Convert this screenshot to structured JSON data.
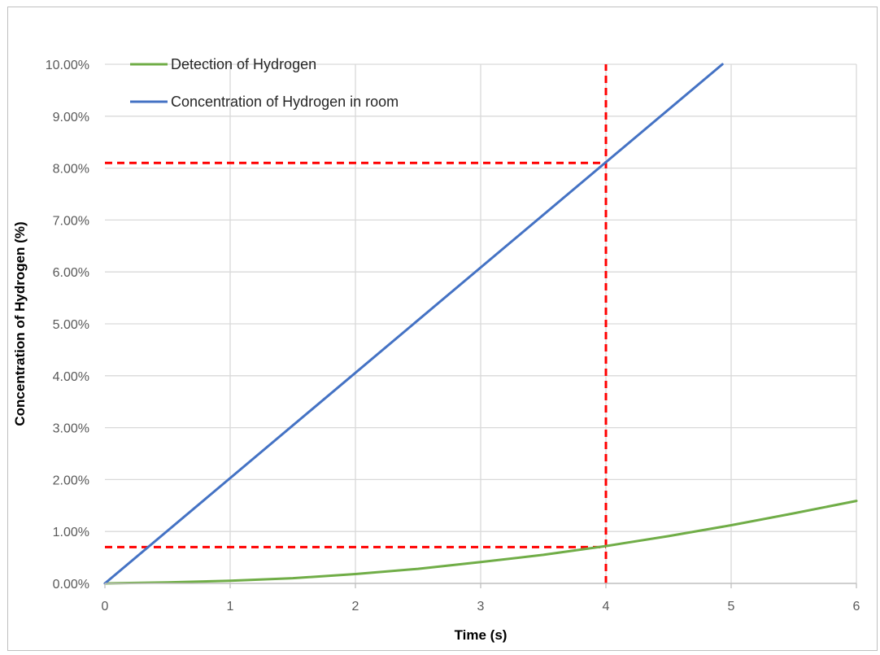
{
  "chart_data": {
    "type": "line",
    "xlabel": "Time (s)",
    "ylabel": "Concentration of Hydrogen (%)",
    "xlim": [
      0,
      6
    ],
    "ylim": [
      0,
      0.1
    ],
    "x_ticks": [
      0,
      1,
      2,
      3,
      4,
      5,
      6
    ],
    "x_tick_labels": [
      "0",
      "1",
      "2",
      "3",
      "4",
      "5",
      "6"
    ],
    "y_ticks": [
      0,
      0.01,
      0.02,
      0.03,
      0.04,
      0.05,
      0.06,
      0.07,
      0.08,
      0.09,
      0.1
    ],
    "y_tick_labels": [
      "0.00%",
      "1.00%",
      "2.00%",
      "3.00%",
      "4.00%",
      "5.00%",
      "6.00%",
      "7.00%",
      "8.00%",
      "9.00%",
      "10.00%"
    ],
    "grid": true,
    "legend_position": "top-left",
    "series": [
      {
        "name": "Detection of Hydrogen",
        "color": "#70ad47",
        "x": [
          0,
          0.5,
          1,
          1.5,
          2,
          2.5,
          3,
          3.5,
          4,
          4.5,
          5,
          5.5,
          6
        ],
        "y": [
          0,
          0.0002,
          0.0005,
          0.001,
          0.0018,
          0.0028,
          0.0041,
          0.0055,
          0.0072,
          0.0091,
          0.0112,
          0.0135,
          0.0159
        ]
      },
      {
        "name": "Concentration of Hydrogen in room",
        "color": "#4472c4",
        "x": [
          0,
          4.93
        ],
        "y": [
          0,
          0.1
        ]
      }
    ],
    "annotations": [
      {
        "type": "reference-line",
        "orientation": "vertical",
        "x": 4,
        "y_from": 0,
        "y_to": 0.1,
        "color": "#ff0000",
        "style": "dashed"
      },
      {
        "type": "reference-line",
        "orientation": "horizontal",
        "y": 0.081,
        "x_from": 0,
        "x_to": 4,
        "color": "#ff0000",
        "style": "dashed"
      },
      {
        "type": "reference-line",
        "orientation": "horizontal",
        "y": 0.007,
        "x_from": 0,
        "x_to": 4,
        "color": "#ff0000",
        "style": "dashed"
      }
    ],
    "grid_color": "#d9d9d9",
    "axis_color": "#bfbfbf"
  }
}
